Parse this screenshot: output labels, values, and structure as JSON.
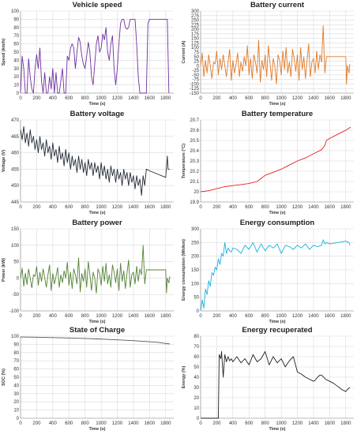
{
  "chart_data": [
    {
      "type": "line",
      "title": "Vehicle speed",
      "xlabel": "Time (s)",
      "ylabel": "Speed (km/h)",
      "xlim": [
        0,
        1900
      ],
      "ylim": [
        0,
        100
      ],
      "xticks": [
        0,
        200,
        400,
        600,
        800,
        1000,
        1200,
        1400,
        1600,
        1800
      ],
      "yticks": [
        0,
        10,
        20,
        30,
        40,
        50,
        60,
        70,
        80,
        90,
        100
      ],
      "grid": true,
      "color": "#7030a0",
      "x": [
        0,
        20,
        40,
        60,
        80,
        100,
        120,
        140,
        160,
        180,
        200,
        220,
        240,
        260,
        280,
        300,
        320,
        340,
        360,
        380,
        400,
        420,
        440,
        460,
        480,
        500,
        520,
        540,
        560,
        580,
        600,
        620,
        640,
        660,
        680,
        700,
        720,
        740,
        760,
        780,
        800,
        820,
        840,
        860,
        880,
        900,
        920,
        940,
        960,
        980,
        1000,
        1020,
        1040,
        1060,
        1080,
        1100,
        1120,
        1140,
        1160,
        1180,
        1200,
        1220,
        1240,
        1260,
        1280,
        1300,
        1320,
        1340,
        1360,
        1380,
        1400,
        1420,
        1440,
        1460,
        1480,
        1500,
        1520,
        1540,
        1560,
        1580,
        1600,
        1620,
        1640,
        1660,
        1680,
        1700,
        1720,
        1740,
        1760,
        1780,
        1800,
        1820,
        1840
      ],
      "y": [
        0,
        45,
        30,
        0,
        0,
        42,
        20,
        5,
        0,
        30,
        47,
        30,
        55,
        15,
        0,
        25,
        0,
        0,
        20,
        5,
        30,
        0,
        25,
        0,
        0,
        15,
        30,
        0,
        0,
        45,
        40,
        55,
        60,
        55,
        30,
        50,
        68,
        62,
        45,
        35,
        30,
        45,
        62,
        50,
        20,
        10,
        35,
        60,
        70,
        50,
        55,
        72,
        65,
        80,
        50,
        40,
        60,
        70,
        30,
        10,
        30,
        60,
        85,
        90,
        90,
        80,
        78,
        80,
        90,
        90,
        90,
        90,
        60,
        20,
        0,
        0,
        0,
        0,
        0,
        85,
        90,
        90,
        90,
        90,
        90,
        90,
        90,
        90,
        90,
        90,
        90,
        90,
        0
      ]
    },
    {
      "type": "line",
      "title": "Battery current",
      "xlabel": "Time (s)",
      "ylabel": "Current (A)",
      "xlim": [
        0,
        1900
      ],
      "ylim": [
        -150,
        300
      ],
      "xticks": [
        0,
        200,
        400,
        600,
        800,
        1000,
        1200,
        1400,
        1600,
        1800
      ],
      "yticks": [
        -150,
        -125,
        -100,
        -75,
        -50,
        -25,
        0,
        25,
        50,
        75,
        100,
        125,
        150,
        175,
        200,
        225,
        250,
        275,
        300
      ],
      "grid": true,
      "color": "#e07b28",
      "x": [
        0,
        20,
        40,
        60,
        80,
        100,
        120,
        140,
        160,
        180,
        200,
        220,
        240,
        260,
        280,
        300,
        320,
        340,
        360,
        380,
        400,
        420,
        440,
        460,
        480,
        500,
        520,
        540,
        560,
        580,
        600,
        620,
        640,
        660,
        680,
        700,
        720,
        740,
        760,
        780,
        800,
        820,
        840,
        860,
        880,
        900,
        920,
        940,
        960,
        980,
        1000,
        1020,
        1040,
        1060,
        1080,
        1100,
        1120,
        1140,
        1160,
        1180,
        1200,
        1220,
        1240,
        1260,
        1280,
        1300,
        1320,
        1340,
        1360,
        1380,
        1400,
        1420,
        1440,
        1460,
        1480,
        1500,
        1520,
        1540,
        1560,
        1580,
        1600,
        1620,
        1640,
        1660,
        1680,
        1700,
        1720,
        1740,
        1760,
        1780,
        1800,
        1810,
        1820,
        1840,
        1850
      ],
      "y": [
        0,
        70,
        -60,
        30,
        -40,
        60,
        0,
        -70,
        20,
        10,
        80,
        -50,
        40,
        -20,
        60,
        0,
        -60,
        20,
        90,
        -80,
        30,
        -40,
        10,
        70,
        -60,
        20,
        -30,
        50,
        0,
        110,
        -50,
        40,
        -70,
        60,
        20,
        -40,
        140,
        -90,
        30,
        -20,
        60,
        -60,
        110,
        20,
        -80,
        40,
        0,
        -100,
        60,
        30,
        -50,
        80,
        -20,
        100,
        -40,
        20,
        -60,
        90,
        40,
        -30,
        60,
        -80,
        100,
        -20,
        50,
        -70,
        30,
        120,
        -60,
        20,
        40,
        -40,
        80,
        -20,
        60,
        20,
        220,
        -40,
        50,
        50,
        50,
        50,
        50,
        50,
        50,
        50,
        50,
        50,
        50,
        50,
        50,
        -100,
        0,
        -40,
        10
      ]
    },
    {
      "type": "line",
      "title": "Battery voltage",
      "xlabel": "Time (s)",
      "ylabel": "Voltage (V)",
      "xlim": [
        0,
        1900
      ],
      "ylim": [
        445,
        470
      ],
      "xticks": [
        0,
        200,
        400,
        600,
        800,
        1000,
        1200,
        1400,
        1600,
        1800
      ],
      "yticks": [
        445,
        450,
        455,
        460,
        465,
        470
      ],
      "grid": true,
      "color": "#222a35",
      "x": [
        0,
        20,
        40,
        60,
        80,
        100,
        120,
        140,
        160,
        180,
        200,
        220,
        240,
        260,
        280,
        300,
        320,
        340,
        360,
        380,
        400,
        420,
        440,
        460,
        480,
        500,
        520,
        540,
        560,
        580,
        600,
        620,
        640,
        660,
        680,
        700,
        720,
        740,
        760,
        780,
        800,
        820,
        840,
        860,
        880,
        900,
        920,
        940,
        960,
        980,
        1000,
        1020,
        1040,
        1060,
        1080,
        1100,
        1120,
        1140,
        1160,
        1180,
        1200,
        1220,
        1240,
        1260,
        1280,
        1300,
        1320,
        1340,
        1360,
        1380,
        1400,
        1420,
        1440,
        1460,
        1480,
        1500,
        1520,
        1540,
        1560,
        1600,
        1700,
        1800,
        1820,
        1830,
        1850
      ],
      "y": [
        467,
        464,
        468,
        463,
        466,
        462,
        467,
        463,
        465,
        461,
        464,
        460,
        465,
        461,
        463,
        459,
        464,
        460,
        462,
        458,
        463,
        459,
        461,
        457,
        462,
        458,
        460,
        456,
        461,
        457,
        460,
        455,
        459,
        456,
        458,
        454,
        459,
        455,
        458,
        454,
        457,
        453,
        458,
        455,
        457,
        453,
        457,
        454,
        456,
        452,
        457,
        453,
        456,
        452,
        455,
        451,
        456,
        453,
        455,
        451,
        455,
        452,
        454,
        450,
        455,
        452,
        454,
        450,
        454,
        451,
        453,
        449,
        453,
        450,
        452,
        447,
        453,
        450,
        455,
        454.5,
        453.5,
        452.5,
        459,
        455,
        455
      ]
    },
    {
      "type": "line",
      "title": "Battery temperature",
      "xlabel": "Time (s)",
      "ylabel": "Temperature (°C)",
      "xlim": [
        0,
        1900
      ],
      "ylim": [
        19.9,
        20.7
      ],
      "xticks": [
        0,
        200,
        400,
        600,
        800,
        1000,
        1200,
        1400,
        1600,
        1800
      ],
      "yticks": [
        19.9,
        20.0,
        20.1,
        20.2,
        20.3,
        20.4,
        20.5,
        20.6,
        20.7
      ],
      "grid": true,
      "color": "#e02020",
      "x": [
        0,
        100,
        200,
        300,
        400,
        500,
        600,
        700,
        750,
        800,
        900,
        1000,
        1100,
        1200,
        1300,
        1400,
        1500,
        1540,
        1560,
        1600,
        1700,
        1800,
        1860
      ],
      "y": [
        20.0,
        20.01,
        20.03,
        20.05,
        20.06,
        20.07,
        20.08,
        20.1,
        20.13,
        20.16,
        20.19,
        20.22,
        20.26,
        20.3,
        20.33,
        20.37,
        20.41,
        20.45,
        20.5,
        20.52,
        20.56,
        20.6,
        20.63
      ]
    },
    {
      "type": "line",
      "title": "Battery power",
      "xlabel": "Time (s)",
      "ylabel": "Power (kW)",
      "xlim": [
        0,
        1900
      ],
      "ylim": [
        -100,
        150
      ],
      "xticks": [
        0,
        200,
        400,
        600,
        800,
        1000,
        1200,
        1400,
        1600,
        1800
      ],
      "yticks": [
        -100,
        -50,
        0,
        50,
        100,
        150
      ],
      "grid": true,
      "color": "#548235",
      "x": [
        0,
        20,
        40,
        60,
        80,
        100,
        120,
        140,
        160,
        180,
        200,
        220,
        240,
        260,
        280,
        300,
        320,
        340,
        360,
        380,
        400,
        420,
        440,
        460,
        480,
        500,
        520,
        540,
        560,
        580,
        600,
        620,
        640,
        660,
        680,
        700,
        720,
        740,
        760,
        780,
        800,
        820,
        840,
        860,
        880,
        900,
        920,
        940,
        960,
        980,
        1000,
        1020,
        1040,
        1060,
        1080,
        1100,
        1120,
        1140,
        1160,
        1180,
        1200,
        1220,
        1240,
        1260,
        1280,
        1300,
        1320,
        1340,
        1360,
        1380,
        1400,
        1420,
        1440,
        1460,
        1480,
        1500,
        1520,
        1540,
        1560,
        1580,
        1600,
        1700,
        1800,
        1810,
        1820,
        1840,
        1850
      ],
      "y": [
        0,
        30,
        -25,
        15,
        -20,
        28,
        0,
        -30,
        10,
        5,
        35,
        -22,
        18,
        -10,
        28,
        0,
        -28,
        10,
        40,
        -38,
        14,
        -18,
        5,
        32,
        -28,
        10,
        -14,
        22,
        0,
        48,
        -22,
        18,
        -32,
        28,
        10,
        -18,
        62,
        -42,
        14,
        -10,
        28,
        -28,
        50,
        10,
        -38,
        18,
        0,
        -46,
        28,
        14,
        -22,
        36,
        -10,
        45,
        -18,
        10,
        -28,
        40,
        18,
        -14,
        28,
        -38,
        45,
        -10,
        22,
        -32,
        14,
        55,
        -28,
        10,
        18,
        -18,
        36,
        -10,
        28,
        10,
        100,
        -18,
        25,
        25,
        25,
        25,
        25,
        -45,
        0,
        -15,
        5
      ]
    },
    {
      "type": "line",
      "title": "Energy consumption",
      "xlabel": "Time (s)",
      "ylabel": "Energy consumption (Wh/km)",
      "xlim": [
        0,
        1900
      ],
      "ylim": [
        0,
        300
      ],
      "xticks": [
        0,
        200,
        400,
        600,
        800,
        1000,
        1200,
        1400,
        1600,
        1800
      ],
      "yticks": [
        0,
        50,
        100,
        150,
        200,
        250,
        300
      ],
      "grid": true,
      "color": "#1ab0e0",
      "x": [
        0,
        20,
        40,
        60,
        80,
        100,
        120,
        140,
        160,
        180,
        200,
        220,
        240,
        260,
        280,
        300,
        320,
        340,
        360,
        380,
        400,
        450,
        500,
        550,
        600,
        650,
        700,
        750,
        800,
        850,
        900,
        950,
        1000,
        1050,
        1100,
        1150,
        1200,
        1250,
        1300,
        1350,
        1400,
        1450,
        1500,
        1520,
        1540,
        1560,
        1600,
        1700,
        1800,
        1840,
        1850
      ],
      "y": [
        0,
        40,
        10,
        80,
        60,
        110,
        90,
        140,
        130,
        160,
        150,
        190,
        170,
        210,
        200,
        250,
        210,
        230,
        220,
        215,
        230,
        225,
        210,
        240,
        225,
        250,
        215,
        245,
        220,
        240,
        230,
        245,
        210,
        240,
        235,
        225,
        240,
        230,
        245,
        225,
        240,
        235,
        240,
        260,
        245,
        250,
        245,
        250,
        255,
        250,
        240
      ]
    },
    {
      "type": "line",
      "title": "State of Charge",
      "xlabel": "Time (s)",
      "ylabel": "SOC (%)",
      "xlim": [
        0,
        1900
      ],
      "ylim": [
        0,
        100
      ],
      "xticks": [
        0,
        200,
        400,
        600,
        800,
        1000,
        1200,
        1400,
        1600,
        1800
      ],
      "yticks": [
        0,
        10,
        20,
        30,
        40,
        50,
        60,
        70,
        80,
        90,
        100
      ],
      "grid": true,
      "color": "#555555",
      "x": [
        0,
        200,
        400,
        600,
        800,
        1000,
        1200,
        1400,
        1500,
        1600,
        1700,
        1800,
        1850
      ],
      "y": [
        99,
        98.7,
        98.3,
        97.8,
        97.2,
        96.5,
        95.5,
        94.5,
        93.8,
        93.2,
        92.5,
        91,
        90.5
      ]
    },
    {
      "type": "line",
      "title": "Energy recuperated",
      "xlabel": "Time (s)",
      "ylabel": "Energy (%)",
      "xlim": [
        0,
        1900
      ],
      "ylim": [
        0,
        80
      ],
      "xticks": [
        0,
        200,
        400,
        600,
        800,
        1000,
        1200,
        1400,
        1600,
        1800
      ],
      "yticks": [
        0,
        10,
        20,
        30,
        40,
        50,
        60,
        70,
        80
      ],
      "grid": true,
      "color": "#222222",
      "x": [
        0,
        200,
        220,
        230,
        250,
        260,
        280,
        300,
        320,
        340,
        360,
        380,
        400,
        450,
        500,
        550,
        600,
        650,
        700,
        750,
        800,
        850,
        900,
        950,
        1000,
        1050,
        1100,
        1150,
        1200,
        1250,
        1300,
        1350,
        1400,
        1420,
        1450,
        1480,
        1500,
        1550,
        1600,
        1650,
        1700,
        1750,
        1800,
        1820,
        1850
      ],
      "y": [
        0,
        0,
        0,
        62,
        58,
        65,
        40,
        62,
        55,
        60,
        56,
        58,
        55,
        60,
        54,
        58,
        52,
        62,
        55,
        58,
        65,
        52,
        60,
        54,
        58,
        50,
        56,
        60,
        45,
        43,
        40,
        38,
        36,
        37,
        40,
        42,
        42,
        38,
        36,
        34,
        31,
        28,
        26,
        28,
        30
      ]
    }
  ]
}
